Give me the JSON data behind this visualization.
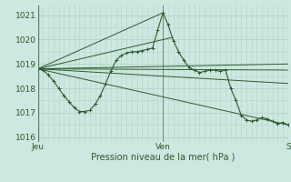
{
  "xlabel": "Pression niveau de la mer( hPa )",
  "bg_color": "#cce8e0",
  "plot_bg_color": "#cce8e0",
  "line_color": "#2d5a2d",
  "grid_color_v": "#b8d8cc",
  "grid_color_h": "#e8b8b8",
  "ylim": [
    1015.8,
    1021.4
  ],
  "yticks": [
    1016,
    1017,
    1018,
    1019,
    1020,
    1021
  ],
  "xlim": [
    0,
    48
  ],
  "xtick_labels_major": [
    "Jeu",
    "Ven",
    "S"
  ],
  "xtick_pos_major": [
    0,
    24,
    48
  ],
  "n_minor_x": 48,
  "series_main": {
    "x": [
      0,
      0.5,
      1,
      1.5,
      2,
      3,
      4,
      5,
      6,
      7,
      8,
      9,
      10,
      11,
      12,
      13,
      14,
      15,
      16,
      17,
      18,
      19,
      20,
      21,
      22,
      23,
      24,
      25,
      26,
      27,
      28,
      29,
      30,
      31,
      32,
      33,
      34,
      35,
      36,
      37,
      38,
      39,
      40,
      41,
      42,
      43,
      44,
      45,
      46,
      47,
      48
    ],
    "y": [
      1018.8,
      1018.85,
      1018.9,
      1018.8,
      1018.65,
      1018.4,
      1018.2,
      1017.95,
      1017.75,
      1017.45,
      1017.1,
      1017.05,
      1017.1,
      1017.3,
      1017.55,
      1018.1,
      1018.65,
      1019.1,
      1019.35,
      1019.45,
      1019.5,
      1019.55,
      1019.6,
      1019.65,
      1019.55,
      1019.8,
      1021.1,
      1020.65,
      1020.1,
      1019.5,
      1019.3,
      1019.2,
      1019.15,
      1019.1,
      1019.1,
      1019.1,
      1019.05,
      1019.0,
      1018.85,
      1018.75,
      1018.7,
      1018.65,
      1018.65,
      1018.7,
      1018.75,
      1018.8,
      1018.8,
      1018.75,
      1018.6,
      1018.4,
      1018.2
    ]
  },
  "series_straight": [
    {
      "x": [
        0,
        24
      ],
      "y": [
        1018.8,
        1021.1
      ]
    },
    {
      "x": [
        0,
        26
      ],
      "y": [
        1018.8,
        1020.1
      ]
    },
    {
      "x": [
        0,
        48
      ],
      "y": [
        1018.8,
        1018.2
      ]
    },
    {
      "x": [
        0,
        48
      ],
      "y": [
        1018.8,
        1018.75
      ]
    },
    {
      "x": [
        0,
        48
      ],
      "y": [
        1018.8,
        1019.0
      ]
    },
    {
      "x": [
        0,
        48
      ],
      "y": [
        1018.8,
        1016.5
      ]
    }
  ],
  "series_detail": {
    "x": [
      0,
      1,
      2,
      3,
      4,
      5,
      6,
      7,
      8,
      9,
      10,
      11,
      12,
      13,
      14,
      15,
      16,
      17,
      18,
      19,
      20,
      21,
      22,
      23,
      24,
      25,
      26,
      27,
      28,
      29,
      30,
      31,
      32,
      33,
      34,
      35,
      36,
      37,
      38,
      39,
      40,
      41,
      42,
      43,
      44,
      45,
      46,
      47,
      48
    ],
    "y": [
      1018.8,
      1018.75,
      1018.55,
      1018.3,
      1018.0,
      1017.7,
      1017.45,
      1017.2,
      1017.05,
      1017.05,
      1017.1,
      1017.35,
      1017.7,
      1018.2,
      1018.7,
      1019.15,
      1019.35,
      1019.45,
      1019.5,
      1019.5,
      1019.55,
      1019.6,
      1019.65,
      1020.4,
      1021.1,
      1020.6,
      1019.95,
      1019.5,
      1019.15,
      1018.85,
      1018.75,
      1018.65,
      1018.7,
      1018.75,
      1018.75,
      1018.7,
      1018.75,
      1018.0,
      1017.5,
      1016.9,
      1016.7,
      1016.65,
      1016.7,
      1016.8,
      1016.75,
      1016.65,
      1016.55,
      1016.6,
      1016.5
    ]
  }
}
